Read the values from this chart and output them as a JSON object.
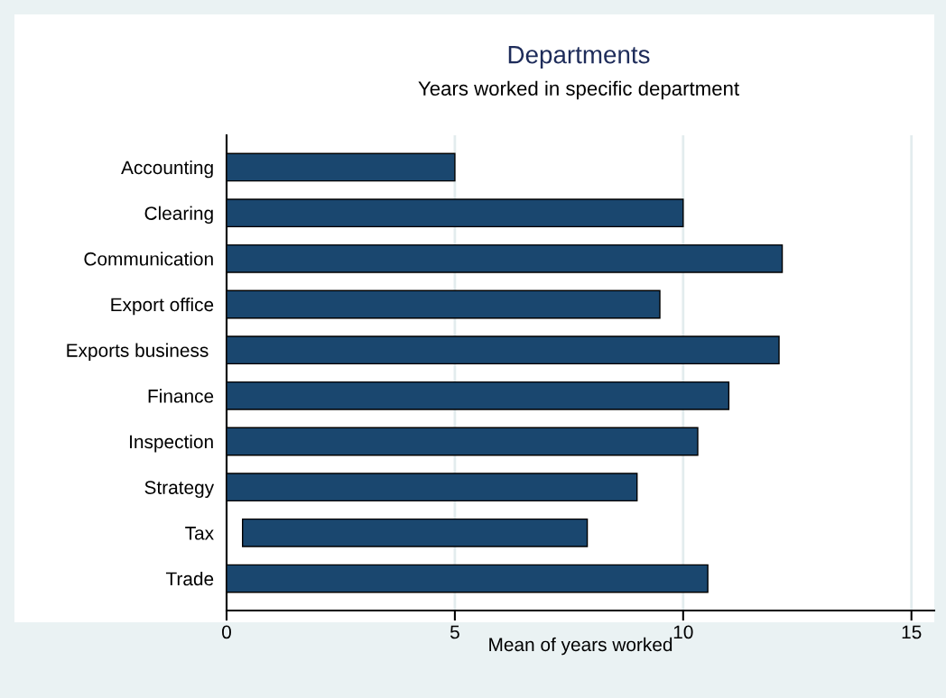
{
  "chart_data": {
    "type": "bar",
    "orientation": "horizontal",
    "title": "Departments",
    "subtitle": "Years worked in specific department",
    "xlabel": "Mean of years worked",
    "categories": [
      "Accounting",
      "Clearing",
      "Communication",
      "Export office",
      "Exports business ",
      "Finance",
      "Inspection",
      "Strategy",
      "Tax",
      "Trade"
    ],
    "values": [
      5.0,
      10.0,
      12.17,
      9.49,
      12.1,
      11.0,
      10.32,
      8.99,
      7.55,
      10.54
    ],
    "base": [
      0,
      0,
      0,
      0,
      0,
      0,
      0,
      0,
      0.35,
      0
    ],
    "color": "#1a476f",
    "xlim": [
      0,
      15.5
    ],
    "xticks": [
      0,
      5,
      10,
      15
    ],
    "grid": "x"
  }
}
